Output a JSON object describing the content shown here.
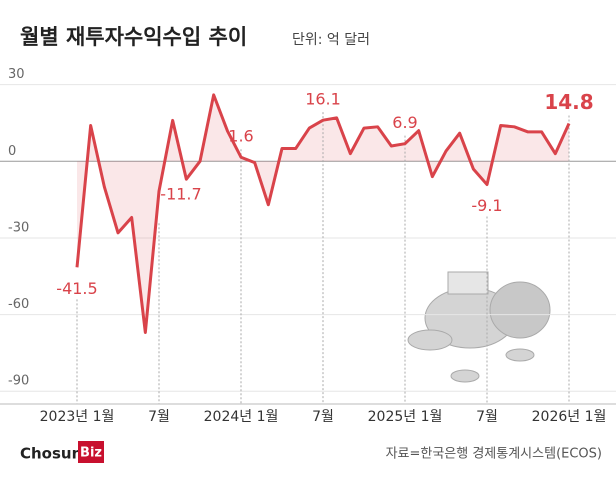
{
  "chart_data": {
    "type": "line",
    "title": "월별 재투자수익수입 추이",
    "subtitle": "단위: 억 달러",
    "source": "자료=한국은행 경제통계시스템(ECOS)",
    "logo": "Chosun",
    "logo_badge": "Biz",
    "categories": [
      "2023년 1월",
      null,
      null,
      null,
      null,
      null,
      "7월",
      null,
      null,
      null,
      null,
      null,
      "2024년 1월",
      null,
      null,
      null,
      null,
      null,
      "7월",
      null,
      null,
      null,
      null,
      null,
      "2025년 1월",
      null,
      null,
      null,
      null,
      null,
      "7월",
      null,
      null,
      null,
      null,
      null,
      "2026년 1월"
    ],
    "series": [
      {
        "name": "재투자수익수입",
        "color": "#d9434a",
        "values": [
          -41.5,
          14,
          -10,
          -28,
          -22,
          -67,
          -11.7,
          16,
          -7,
          0,
          26,
          12,
          1.6,
          -0.5,
          -17,
          5,
          5,
          13,
          16.1,
          17,
          3,
          13,
          13.5,
          6,
          6.9,
          12,
          -6,
          4,
          11,
          -3,
          -9.1,
          14,
          13.5,
          11.5,
          11.5,
          3,
          14.8
        ]
      }
    ],
    "ylim": [
      -95,
      33
    ],
    "yticks": [
      30,
      0,
      -30,
      -60,
      -90
    ],
    "grid": true
  }
}
